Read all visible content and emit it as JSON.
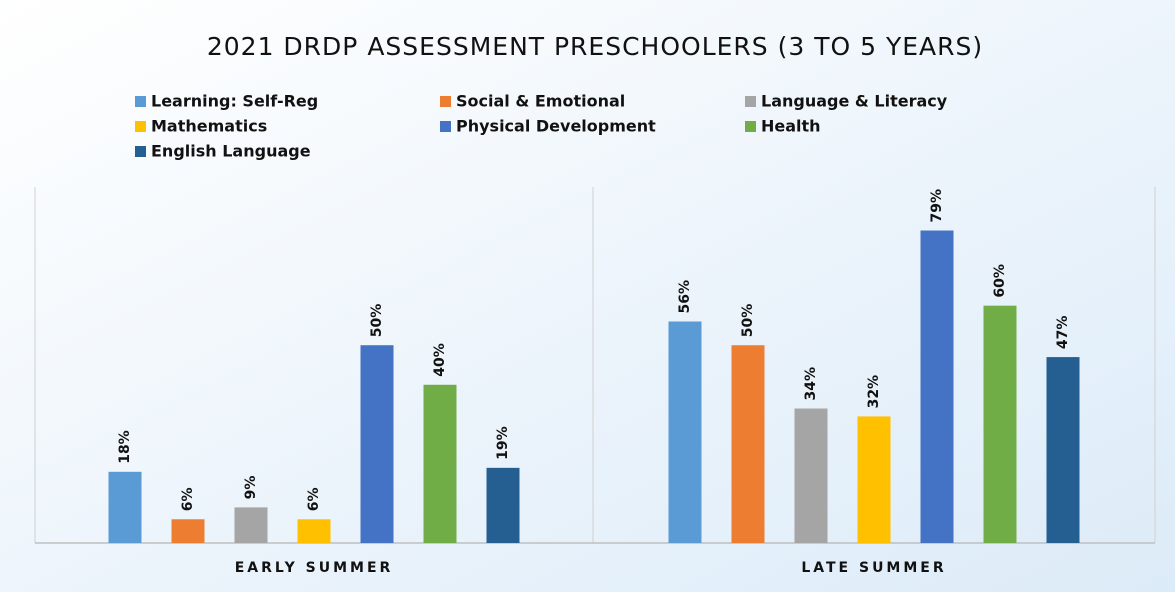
{
  "chart_data": {
    "type": "bar",
    "title": "2021 DRDP ASSESSMENT PRESCHOOLERS (3 TO 5 YEARS)",
    "categories": [
      "EARLY SUMMER",
      "LATE SUMMER"
    ],
    "series": [
      {
        "name": "Learning: Self-Reg",
        "color": "#5b9bd5",
        "values": [
          18,
          56
        ],
        "value_labels": [
          "18%",
          "56%"
        ]
      },
      {
        "name": "Social & Emotional",
        "color": "#ed7d31",
        "values": [
          6,
          50
        ],
        "value_labels": [
          "6%",
          "50%"
        ]
      },
      {
        "name": "Language & Literacy",
        "color": "#a5a5a5",
        "values": [
          9,
          34
        ],
        "value_labels": [
          "9%",
          "34%"
        ]
      },
      {
        "name": "Mathematics",
        "color": "#ffc000",
        "values": [
          6,
          32
        ],
        "value_labels": [
          "6%",
          "32%"
        ]
      },
      {
        "name": "Physical Development",
        "color": "#4472c4",
        "values": [
          50,
          79
        ],
        "value_labels": [
          "50%",
          "79%"
        ]
      },
      {
        "name": "Health",
        "color": "#70ad47",
        "values": [
          40,
          60
        ],
        "value_labels": [
          "40%",
          "60%"
        ]
      },
      {
        "name": "English Language",
        "color": "#255e91",
        "values": [
          19,
          47
        ],
        "value_labels": [
          "19%",
          "47%"
        ]
      }
    ],
    "ylim": [
      0,
      90
    ],
    "legend": "top"
  }
}
